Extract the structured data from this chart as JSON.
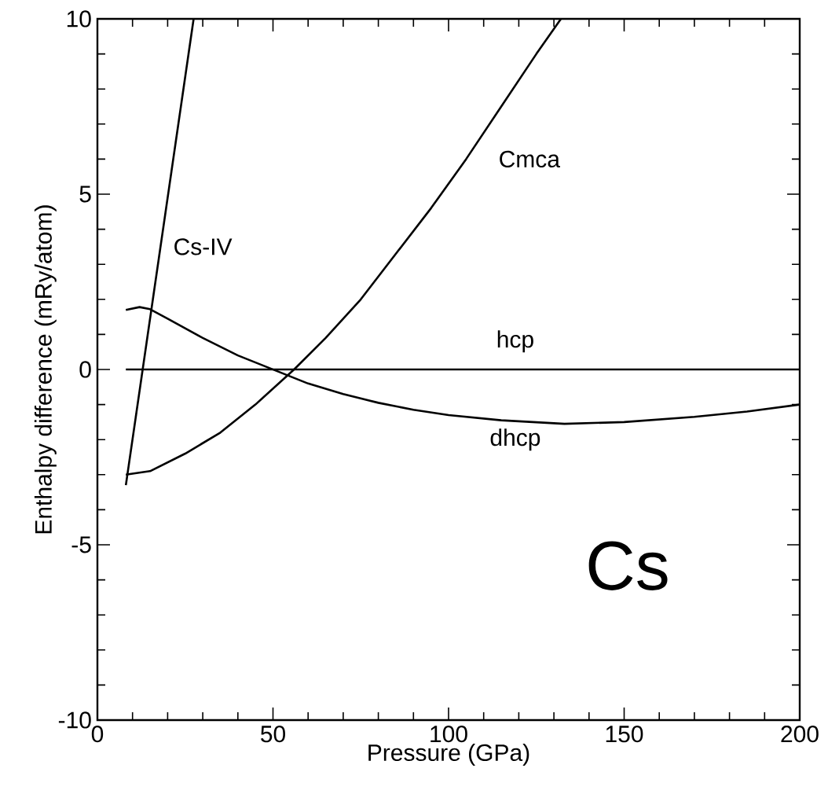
{
  "chart_data": {
    "type": "line",
    "xlabel": "Pressure (GPa)",
    "ylabel": "Enthalpy difference (mRy/atom)",
    "xlim": [
      0,
      200
    ],
    "ylim": [
      -10,
      10
    ],
    "xticks": [
      0,
      50,
      100,
      150,
      200
    ],
    "yticks": [
      -10,
      -5,
      0,
      5,
      10
    ],
    "grid": false,
    "marker": "none",
    "line_style": "solid",
    "annotations": [
      "Cs"
    ],
    "series": [
      {
        "name": "Cs-IV",
        "color": "#000000",
        "x": [
          8.1,
          27.4
        ],
        "values": [
          -3.3,
          10
        ]
      },
      {
        "name": "Cmca",
        "color": "#000000",
        "x": [
          8.1,
          15,
          25,
          35,
          45,
          56,
          65,
          75,
          85,
          95,
          105,
          115,
          125,
          132
        ],
        "values": [
          -3.0,
          -2.9,
          -2.4,
          -1.8,
          -1.0,
          0,
          0.9,
          2.0,
          3.3,
          4.6,
          6.0,
          7.5,
          9.0,
          10
        ]
      },
      {
        "name": "hcp",
        "color": "#000000",
        "x": [
          8.1,
          200
        ],
        "values": [
          0,
          0
        ]
      },
      {
        "name": "dhcp",
        "color": "#000000",
        "x": [
          8.1,
          12,
          15,
          20,
          30,
          40,
          50,
          60,
          70,
          80,
          90,
          100,
          115,
          133,
          150,
          170,
          185,
          200
        ],
        "values": [
          1.7,
          1.78,
          1.72,
          1.45,
          0.9,
          0.4,
          0,
          -0.4,
          -0.7,
          -0.95,
          -1.15,
          -1.3,
          -1.45,
          -1.55,
          -1.5,
          -1.35,
          -1.2,
          -1.0
        ]
      }
    ]
  }
}
